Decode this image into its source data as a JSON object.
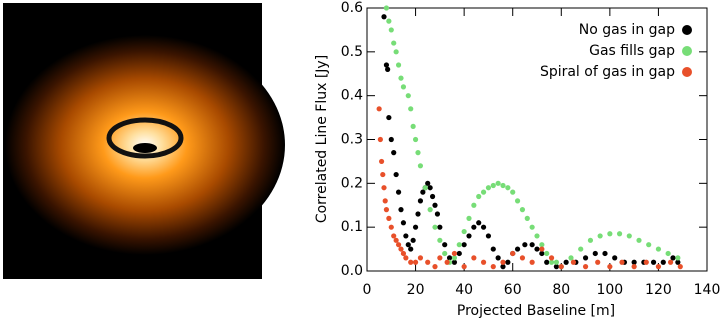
{
  "chart_data": {
    "type": "scatter",
    "xlabel": "Projected Baseline [m]",
    "ylabel": "Correlated Line Flux [Jy]",
    "xlim": [
      0,
      140
    ],
    "ylim": [
      0,
      0.6
    ],
    "xticks": [
      0,
      20,
      40,
      60,
      80,
      100,
      120,
      140
    ],
    "yticks": [
      {
        "value": 0,
        "label": "0.0"
      },
      0.1,
      0.2,
      0.3,
      0.4,
      0.5,
      0.6
    ],
    "legend": "top-right",
    "series": [
      {
        "name": "No gas in gap",
        "color": "#000000",
        "x": [
          7,
          8,
          8.5,
          9,
          10,
          11,
          12,
          13,
          14,
          15,
          16,
          17,
          18,
          19,
          20,
          21,
          22,
          23,
          24,
          25,
          26,
          27,
          28,
          29,
          30,
          32,
          34,
          36,
          38,
          40,
          42,
          44,
          46,
          48,
          50,
          52,
          54,
          56,
          58,
          60,
          62,
          65,
          68,
          70,
          72,
          74,
          78,
          82,
          86,
          90,
          94,
          98,
          102,
          106,
          110,
          114,
          118,
          122,
          126,
          128
        ],
        "y": [
          0.58,
          0.47,
          0.46,
          0.35,
          0.3,
          0.27,
          0.22,
          0.18,
          0.14,
          0.11,
          0.08,
          0.06,
          0.05,
          0.07,
          0.1,
          0.13,
          0.16,
          0.18,
          0.19,
          0.2,
          0.19,
          0.17,
          0.15,
          0.13,
          0.1,
          0.06,
          0.03,
          0.02,
          0.04,
          0.06,
          0.08,
          0.1,
          0.11,
          0.1,
          0.08,
          0.05,
          0.03,
          0.01,
          0.02,
          0.04,
          0.05,
          0.06,
          0.06,
          0.05,
          0.04,
          0.02,
          0.01,
          0.02,
          0.02,
          0.03,
          0.04,
          0.04,
          0.03,
          0.02,
          0.02,
          0.02,
          0.02,
          0.02,
          0.03,
          0.02
        ]
      },
      {
        "name": "Gas fills gap",
        "color": "#77dd77",
        "x": [
          8,
          9,
          10,
          11,
          12,
          13,
          14,
          15,
          17,
          18,
          19,
          20,
          21,
          22,
          24,
          26,
          28,
          30,
          32,
          34,
          36,
          38,
          40,
          42,
          44,
          46,
          48,
          50,
          52,
          54,
          56,
          58,
          60,
          62,
          64,
          66,
          68,
          70,
          72,
          74,
          76,
          78,
          80,
          84,
          88,
          92,
          96,
          100,
          104,
          108,
          112,
          116,
          120,
          124,
          128
        ],
        "y": [
          0.6,
          0.57,
          0.55,
          0.52,
          0.5,
          0.47,
          0.44,
          0.42,
          0.4,
          0.37,
          0.33,
          0.3,
          0.27,
          0.24,
          0.19,
          0.14,
          0.1,
          0.07,
          0.04,
          0.02,
          0.03,
          0.06,
          0.09,
          0.12,
          0.15,
          0.17,
          0.18,
          0.19,
          0.195,
          0.2,
          0.195,
          0.19,
          0.18,
          0.16,
          0.14,
          0.12,
          0.1,
          0.08,
          0.06,
          0.04,
          0.02,
          0.02,
          0.01,
          0.03,
          0.05,
          0.07,
          0.08,
          0.085,
          0.085,
          0.08,
          0.07,
          0.06,
          0.05,
          0.04,
          0.03
        ]
      },
      {
        "name": "Spiral of gas in gap",
        "color": "#e8502a",
        "x": [
          5,
          5.5,
          6,
          6.5,
          7,
          7.5,
          8,
          9,
          10,
          11,
          12,
          13,
          14,
          15,
          16,
          18,
          20,
          22,
          25,
          28,
          30,
          33,
          36,
          40,
          44,
          48,
          52,
          56,
          60,
          64,
          68,
          72,
          76,
          80,
          85,
          90,
          95,
          100,
          105,
          110,
          115,
          120,
          125,
          129
        ],
        "y": [
          0.37,
          0.3,
          0.25,
          0.22,
          0.19,
          0.16,
          0.14,
          0.12,
          0.1,
          0.08,
          0.07,
          0.06,
          0.05,
          0.04,
          0.03,
          0.02,
          0.02,
          0.03,
          0.02,
          0.01,
          0.03,
          0.02,
          0.04,
          0.01,
          0.03,
          0.02,
          0.01,
          0.02,
          0.04,
          0.03,
          0.02,
          0.05,
          0.03,
          0.01,
          0.02,
          0.01,
          0.02,
          0.01,
          0.02,
          0.01,
          0.02,
          0.01,
          0.02,
          0.01
        ]
      }
    ]
  }
}
